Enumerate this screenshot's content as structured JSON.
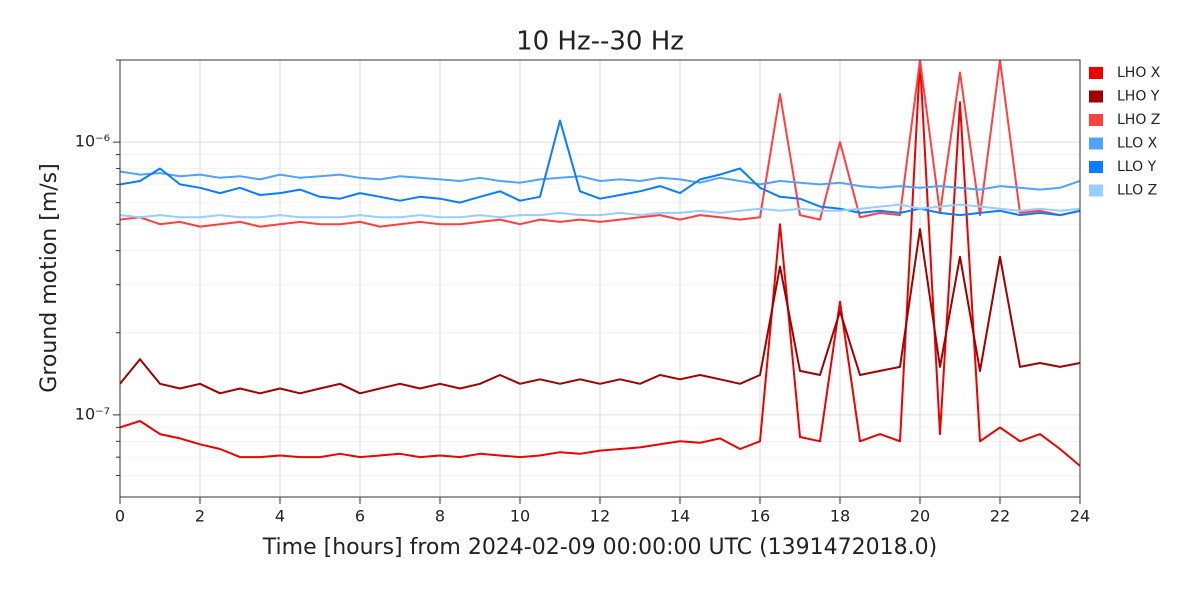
{
  "chart_data": {
    "type": "line",
    "title": "10 Hz--30 Hz",
    "xlabel": "Time [hours] from 2024-02-09 00:00:00 UTC (1391472018.0)",
    "ylabel": "Ground motion [m/s]",
    "log_y": true,
    "grid": true,
    "legend": "outside right",
    "xlim": [
      0,
      24
    ],
    "xticks": [
      0,
      2,
      4,
      6,
      8,
      10,
      12,
      14,
      16,
      18,
      20,
      22,
      24
    ],
    "ylim": [
      5e-08,
      2e-06
    ],
    "yticks": [
      {
        "value": 1e-07,
        "label": "10⁻⁷"
      },
      {
        "value": 1e-06,
        "label": "10⁻⁶"
      }
    ],
    "minor_yticks": [
      6e-08,
      7e-08,
      8e-08,
      9e-08,
      2e-07,
      3e-07,
      4e-07,
      5e-07,
      6e-07,
      7e-07,
      8e-07,
      9e-07,
      2e-06
    ],
    "x": [
      0,
      0.5,
      1,
      1.5,
      2,
      2.5,
      3,
      3.5,
      4,
      4.5,
      5,
      5.5,
      6,
      6.5,
      7,
      7.5,
      8,
      8.5,
      9,
      9.5,
      10,
      10.5,
      11,
      11.5,
      12,
      12.5,
      13,
      13.5,
      14,
      14.5,
      15,
      15.5,
      16,
      16.5,
      17,
      17.5,
      18,
      18.5,
      19,
      19.5,
      20,
      20.5,
      21,
      21.5,
      22,
      22.5,
      23,
      23.5,
      24
    ],
    "series": [
      {
        "name": "LHO X",
        "color": "#ee0000",
        "values": [
          9e-08,
          9.5e-08,
          8.5e-08,
          8.2e-08,
          7.8e-08,
          7.5e-08,
          7e-08,
          7e-08,
          7.1e-08,
          7e-08,
          7e-08,
          7.2e-08,
          7e-08,
          7.1e-08,
          7.2e-08,
          7e-08,
          7.1e-08,
          7e-08,
          7.2e-08,
          7.1e-08,
          7e-08,
          7.1e-08,
          7.3e-08,
          7.2e-08,
          7.4e-08,
          7.5e-08,
          7.6e-08,
          7.8e-08,
          8e-08,
          7.9e-08,
          8.2e-08,
          7.5e-08,
          8e-08,
          5e-07,
          8.3e-08,
          8e-08,
          2.6e-07,
          8e-08,
          8.5e-08,
          8e-08,
          2e-06,
          8.5e-08,
          1.4e-06,
          8e-08,
          9e-08,
          8e-08,
          8.5e-08,
          7.5e-08,
          6.5e-08
        ]
      },
      {
        "name": "LHO Y",
        "color": "#a00000",
        "values": [
          1.3e-07,
          1.6e-07,
          1.3e-07,
          1.25e-07,
          1.3e-07,
          1.2e-07,
          1.25e-07,
          1.2e-07,
          1.25e-07,
          1.2e-07,
          1.25e-07,
          1.3e-07,
          1.2e-07,
          1.25e-07,
          1.3e-07,
          1.25e-07,
          1.3e-07,
          1.25e-07,
          1.3e-07,
          1.4e-07,
          1.3e-07,
          1.35e-07,
          1.3e-07,
          1.35e-07,
          1.3e-07,
          1.35e-07,
          1.3e-07,
          1.4e-07,
          1.35e-07,
          1.4e-07,
          1.35e-07,
          1.3e-07,
          1.4e-07,
          3.5e-07,
          1.45e-07,
          1.4e-07,
          2.4e-07,
          1.4e-07,
          1.45e-07,
          1.5e-07,
          4.8e-07,
          1.5e-07,
          3.8e-07,
          1.45e-07,
          3.8e-07,
          1.5e-07,
          1.55e-07,
          1.5e-07,
          1.55e-07
        ]
      },
      {
        "name": "LHO Z",
        "color": "#ff4040",
        "values": [
          5.2e-07,
          5.3e-07,
          5e-07,
          5.1e-07,
          4.9e-07,
          5e-07,
          5.1e-07,
          4.9e-07,
          5e-07,
          5.1e-07,
          5e-07,
          5e-07,
          5.1e-07,
          4.9e-07,
          5e-07,
          5.1e-07,
          5e-07,
          5e-07,
          5.1e-07,
          5.2e-07,
          5e-07,
          5.2e-07,
          5.1e-07,
          5.2e-07,
          5.1e-07,
          5.2e-07,
          5.3e-07,
          5.4e-07,
          5.2e-07,
          5.4e-07,
          5.3e-07,
          5.2e-07,
          5.3e-07,
          1.5e-06,
          5.4e-07,
          5.2e-07,
          1e-06,
          5.3e-07,
          5.5e-07,
          5.4e-07,
          2e-06,
          5.5e-07,
          1.8e-06,
          5.4e-07,
          2e-06,
          5.5e-07,
          5.6e-07,
          5.4e-07,
          5.6e-07
        ]
      },
      {
        "name": "LLO X",
        "color": "#4da3ff",
        "values": [
          7.8e-07,
          7.6e-07,
          7.7e-07,
          7.5e-07,
          7.6e-07,
          7.4e-07,
          7.5e-07,
          7.3e-07,
          7.6e-07,
          7.4e-07,
          7.5e-07,
          7.6e-07,
          7.4e-07,
          7.3e-07,
          7.5e-07,
          7.4e-07,
          7.3e-07,
          7.2e-07,
          7.4e-07,
          7.2e-07,
          7.1e-07,
          7.3e-07,
          7.4e-07,
          7.5e-07,
          7.2e-07,
          7.3e-07,
          7.2e-07,
          7.4e-07,
          7.3e-07,
          7.1e-07,
          7.4e-07,
          7.2e-07,
          7e-07,
          7.2e-07,
          7.1e-07,
          7e-07,
          7.1e-07,
          6.9e-07,
          6.8e-07,
          6.9e-07,
          6.8e-07,
          6.9e-07,
          6.8e-07,
          6.7e-07,
          6.9e-07,
          6.8e-07,
          6.7e-07,
          6.8e-07,
          7.2e-07
        ]
      },
      {
        "name": "LLO Y",
        "color": "#0a7cff",
        "values": [
          7e-07,
          7.2e-07,
          8e-07,
          7e-07,
          6.8e-07,
          6.5e-07,
          6.8e-07,
          6.4e-07,
          6.5e-07,
          6.7e-07,
          6.3e-07,
          6.2e-07,
          6.5e-07,
          6.3e-07,
          6.1e-07,
          6.3e-07,
          6.2e-07,
          6e-07,
          6.3e-07,
          6.6e-07,
          6.1e-07,
          6.3e-07,
          1.2e-06,
          6.6e-07,
          6.2e-07,
          6.4e-07,
          6.6e-07,
          6.9e-07,
          6.5e-07,
          7.3e-07,
          7.6e-07,
          8e-07,
          6.8e-07,
          6.3e-07,
          6.2e-07,
          5.8e-07,
          5.7e-07,
          5.5e-07,
          5.6e-07,
          5.5e-07,
          5.7e-07,
          5.5e-07,
          5.4e-07,
          5.5e-07,
          5.6e-07,
          5.4e-07,
          5.5e-07,
          5.4e-07,
          5.6e-07
        ]
      },
      {
        "name": "LLO Z",
        "color": "#99ccff",
        "values": [
          5.4e-07,
          5.3e-07,
          5.4e-07,
          5.3e-07,
          5.3e-07,
          5.4e-07,
          5.3e-07,
          5.3e-07,
          5.4e-07,
          5.3e-07,
          5.3e-07,
          5.3e-07,
          5.4e-07,
          5.3e-07,
          5.3e-07,
          5.4e-07,
          5.3e-07,
          5.3e-07,
          5.4e-07,
          5.3e-07,
          5.4e-07,
          5.4e-07,
          5.5e-07,
          5.4e-07,
          5.4e-07,
          5.5e-07,
          5.4e-07,
          5.5e-07,
          5.5e-07,
          5.6e-07,
          5.5e-07,
          5.6e-07,
          5.7e-07,
          5.6e-07,
          5.7e-07,
          5.6e-07,
          5.6e-07,
          5.7e-07,
          5.8e-07,
          5.9e-07,
          5.7e-07,
          5.8e-07,
          5.9e-07,
          5.8e-07,
          5.7e-07,
          5.6e-07,
          5.7e-07,
          5.6e-07,
          5.7e-07
        ]
      }
    ]
  }
}
